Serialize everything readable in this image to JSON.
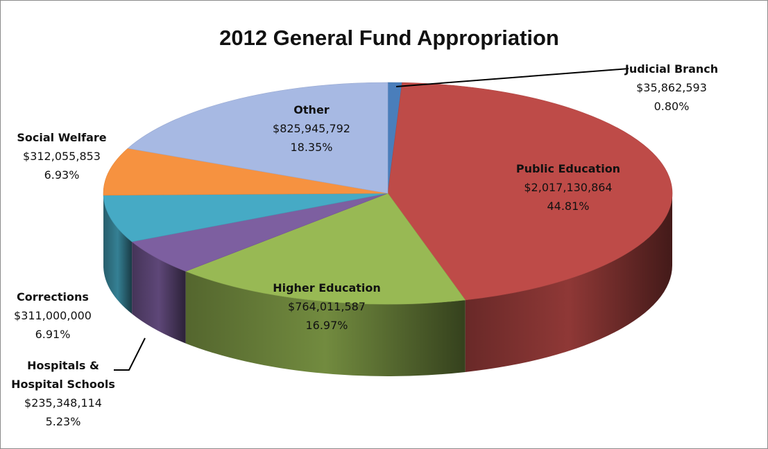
{
  "chart_data": {
    "type": "pie",
    "title": "2012 General Fund Appropriation",
    "slices": [
      {
        "name": "Judicial Branch",
        "amount": "$35,862,593",
        "percent_label": "0.80%",
        "value": 0.8,
        "color": "#4a7ebb"
      },
      {
        "name": "Public Education",
        "amount": "$2,017,130,864",
        "percent_label": "44.81%",
        "value": 44.81,
        "color": "#be4b48"
      },
      {
        "name": "Higher Education",
        "amount": "$764,011,587",
        "percent_label": "16.97%",
        "value": 16.97,
        "color": "#98b954"
      },
      {
        "name": "Hospitals & Hospital Schools",
        "name_lines": [
          "Hospitals &",
          "Hospital Schools"
        ],
        "amount": "$235,348,114",
        "percent_label": "5.23%",
        "value": 5.23,
        "color": "#7d5fa0"
      },
      {
        "name": "Corrections",
        "amount": "$311,000,000",
        "percent_label": "6.91%",
        "value": 6.91,
        "color": "#46aac5"
      },
      {
        "name": "Social Welfare",
        "amount": "$312,055,853",
        "percent_label": "6.93%",
        "value": 6.93,
        "color": "#f69240"
      },
      {
        "name": "Other",
        "amount": "$825,945,792",
        "percent_label": "18.35%",
        "value": 18.35,
        "color": "#a7b9e3"
      }
    ],
    "style": "3d-pie",
    "legend": "none"
  }
}
